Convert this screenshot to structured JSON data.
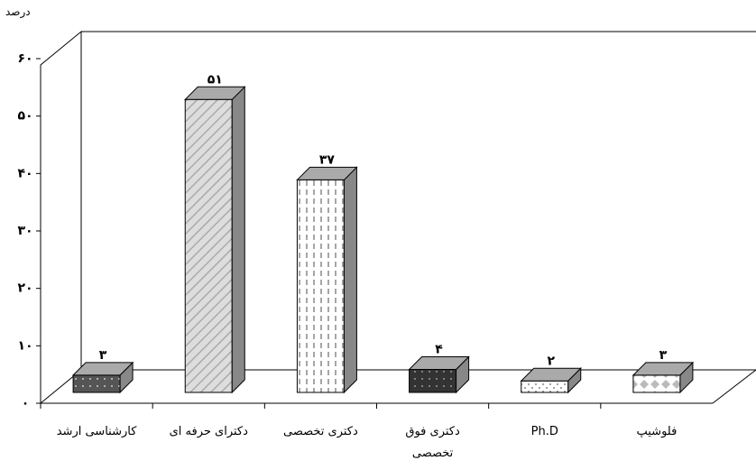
{
  "chart_data": {
    "type": "bar3d",
    "y_label": "درصد",
    "categories": [
      "کارشناسی ارشد",
      "دکترای حرفه ای",
      "دکتری تخصصی",
      "دکتری فوق تخصصی",
      "Ph.D",
      "فلوشیپ"
    ],
    "values": [
      3,
      51,
      37,
      4,
      2,
      3
    ],
    "value_labels": [
      "۳",
      "۵۱",
      "۳۷",
      "۴",
      "۲",
      "۳"
    ],
    "ylim": [
      0,
      60
    ],
    "yticks": [
      {
        "value": 0,
        "label": "۰"
      },
      {
        "value": 10,
        "label": "۱۰"
      },
      {
        "value": 20,
        "label": "۲۰"
      },
      {
        "value": 30,
        "label": "۳۰"
      },
      {
        "value": 40,
        "label": "۴۰"
      },
      {
        "value": 50,
        "label": "۵۰"
      },
      {
        "value": 60,
        "label": "۶۰"
      }
    ]
  }
}
